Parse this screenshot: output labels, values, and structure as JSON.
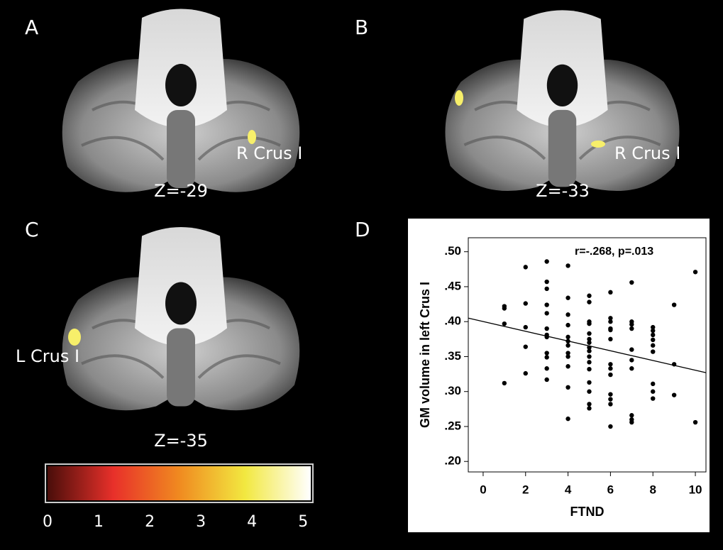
{
  "panels": [
    {
      "label": "A",
      "annotation": "R Crus I",
      "slice": "Z=-29"
    },
    {
      "label": "B",
      "annotation": "R Crus I",
      "slice": "Z=-33"
    },
    {
      "label": "C",
      "annotation": "L Crus I",
      "slice": "Z=-35"
    },
    {
      "label": "D"
    }
  ],
  "colorbar": {
    "lim": [
      0,
      5.15
    ],
    "ticks": [
      0,
      1,
      2,
      3,
      4,
      5
    ]
  },
  "chart_data": {
    "type": "scatter",
    "annotation": "r=-.268, p=.013",
    "x_label": "FTND",
    "y_label": "GM volume in left Crus I",
    "xlim": [
      -0.7,
      10.5
    ],
    "xticks": [
      0,
      2,
      4,
      6,
      8,
      10
    ],
    "ylim": [
      0.185,
      0.52
    ],
    "yticks": [
      {
        "value": 0.2,
        "label": ".20"
      },
      {
        "value": 0.25,
        "label": ".25"
      },
      {
        "value": 0.3,
        "label": ".30"
      },
      {
        "value": 0.35,
        "label": ".35"
      },
      {
        "value": 0.4,
        "label": ".40"
      },
      {
        "value": 0.45,
        "label": ".45"
      },
      {
        "value": 0.5,
        "label": ".50"
      }
    ],
    "color": "#000000",
    "x": [
      1,
      1,
      1,
      1,
      2,
      2,
      2,
      2,
      2,
      3,
      3,
      3,
      3,
      3,
      3,
      3,
      3,
      3,
      3,
      3,
      3,
      4,
      4,
      4,
      4,
      4,
      4,
      4,
      4,
      4,
      4,
      4,
      4,
      5,
      5,
      5,
      5,
      5,
      5,
      5,
      5,
      5,
      5,
      5,
      5,
      5,
      5,
      5,
      5,
      6,
      6,
      6,
      6,
      6,
      6,
      6,
      6,
      6,
      6,
      6,
      6,
      6,
      7,
      7,
      7,
      7,
      7,
      7,
      7,
      7,
      7,
      7,
      8,
      8,
      8,
      8,
      8,
      8,
      8,
      8,
      8,
      9,
      9,
      9,
      10,
      10
    ],
    "values": [
      0.422,
      0.419,
      0.397,
      0.312,
      0.478,
      0.426,
      0.392,
      0.364,
      0.326,
      0.486,
      0.457,
      0.447,
      0.424,
      0.412,
      0.39,
      0.381,
      0.378,
      0.355,
      0.349,
      0.333,
      0.317,
      0.48,
      0.434,
      0.41,
      0.395,
      0.378,
      0.372,
      0.366,
      0.355,
      0.35,
      0.336,
      0.306,
      0.261,
      0.437,
      0.428,
      0.4,
      0.397,
      0.383,
      0.375,
      0.37,
      0.363,
      0.358,
      0.35,
      0.342,
      0.332,
      0.313,
      0.3,
      0.282,
      0.276,
      0.442,
      0.405,
      0.4,
      0.39,
      0.388,
      0.375,
      0.339,
      0.333,
      0.324,
      0.296,
      0.289,
      0.282,
      0.25,
      0.456,
      0.4,
      0.396,
      0.39,
      0.36,
      0.345,
      0.333,
      0.266,
      0.26,
      0.256,
      0.392,
      0.387,
      0.381,
      0.374,
      0.366,
      0.357,
      0.311,
      0.3,
      0.29,
      0.424,
      0.339,
      0.295,
      0.471,
      0.256
    ],
    "trendline": {
      "x": [
        -0.7,
        10.5
      ],
      "values": [
        0.405,
        0.327
      ]
    }
  }
}
